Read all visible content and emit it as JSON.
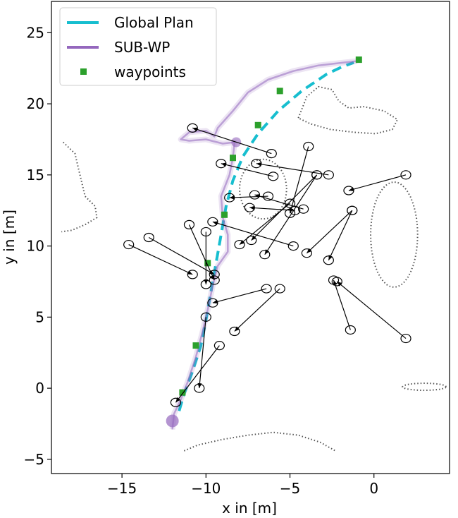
{
  "chart_data": {
    "type": "line",
    "xlabel": "x in [m]",
    "ylabel": "y in [m]",
    "xlim": [
      -19.2,
      4.5
    ],
    "ylim": [
      -6.0,
      27.2
    ],
    "xticks": [
      -15,
      -10,
      -5,
      0
    ],
    "yticks": [
      -5,
      0,
      5,
      10,
      15,
      20,
      25
    ],
    "xtick_labels": [
      "−15",
      "−10",
      "−5",
      "0"
    ],
    "ytick_labels": [
      "−5",
      "0",
      "5",
      "10",
      "15",
      "20",
      "25"
    ],
    "grid": false,
    "legend_position": "top-left",
    "legend": [
      {
        "label": "Global Plan",
        "kind": "dashed-line",
        "color": "#17becf"
      },
      {
        "label": "SUB-WP",
        "kind": "line",
        "color": "#9467bd"
      },
      {
        "label": "waypoints",
        "kind": "square",
        "color": "#2ca02c"
      }
    ],
    "series": [
      {
        "name": "Global Plan",
        "style": "dashed",
        "color": "#17becf",
        "points": [
          [
            -11.6,
            -1.6
          ],
          [
            -11.3,
            -0.4
          ],
          [
            -10.8,
            1.2
          ],
          [
            -10.3,
            3.0
          ],
          [
            -10.0,
            4.8
          ],
          [
            -9.7,
            6.8
          ],
          [
            -9.4,
            8.8
          ],
          [
            -9.1,
            10.8
          ],
          [
            -8.8,
            12.8
          ],
          [
            -8.4,
            14.6
          ],
          [
            -7.8,
            16.3
          ],
          [
            -6.9,
            17.9
          ],
          [
            -5.7,
            19.5
          ],
          [
            -4.3,
            20.9
          ],
          [
            -2.8,
            22.1
          ],
          [
            -1.9,
            22.6
          ],
          [
            -1.2,
            22.9
          ]
        ]
      },
      {
        "name": "SUB-WP",
        "style": "solid",
        "color": "#9467bd",
        "points": [
          [
            -12.0,
            -2.9
          ],
          [
            -11.9,
            -1.8
          ],
          [
            -11.5,
            -0.8
          ],
          [
            -11.1,
            0.4
          ],
          [
            -10.6,
            2.2
          ],
          [
            -10.2,
            4.0
          ],
          [
            -9.9,
            5.5
          ],
          [
            -9.6,
            7.2
          ],
          [
            -9.3,
            8.6
          ],
          [
            -8.7,
            9.6
          ],
          [
            -8.7,
            10.8
          ],
          [
            -9.0,
            12.0
          ],
          [
            -9.1,
            13.5
          ],
          [
            -8.6,
            15.0
          ],
          [
            -8.4,
            16.2
          ],
          [
            -8.3,
            17.3
          ],
          [
            -9.0,
            17.2
          ],
          [
            -10.0,
            17.5
          ],
          [
            -11.0,
            17.4
          ],
          [
            -11.5,
            17.5
          ],
          [
            -11.0,
            18.0
          ],
          [
            -10.0,
            18.1
          ],
          [
            -9.5,
            17.7
          ],
          [
            -9.3,
            18.3
          ],
          [
            -8.4,
            19.5
          ],
          [
            -7.5,
            20.8
          ],
          [
            -6.3,
            21.7
          ],
          [
            -4.8,
            22.3
          ],
          [
            -3.3,
            22.7
          ],
          [
            -1.8,
            22.9
          ],
          [
            -1.0,
            23.0
          ]
        ]
      },
      {
        "name": "waypoints",
        "style": "markers",
        "color": "#2ca02c",
        "points": [
          [
            -11.4,
            -0.3
          ],
          [
            -10.6,
            3.0
          ],
          [
            -9.9,
            8.8
          ],
          [
            -8.9,
            12.2
          ],
          [
            -8.4,
            16.2
          ],
          [
            -6.9,
            18.5
          ],
          [
            -5.6,
            20.9
          ],
          [
            -0.9,
            23.1
          ]
        ]
      }
    ],
    "obstacle_arrows": [
      [
        [
          -6.1,
          16.5
        ],
        [
          -10.8,
          18.3
        ]
      ],
      [
        [
          -4.8,
          10.0
        ],
        [
          -9.6,
          11.7
        ]
      ],
      [
        [
          -3.9,
          17.0
        ],
        [
          -5.0,
          12.3
        ]
      ],
      [
        [
          -3.4,
          15.0
        ],
        [
          -7.3,
          10.4
        ]
      ],
      [
        [
          -3.4,
          15.0
        ],
        [
          -6.5,
          9.4
        ]
      ],
      [
        [
          -4.2,
          12.6
        ],
        [
          -7.1,
          13.6
        ]
      ],
      [
        [
          -5.0,
          13.0
        ],
        [
          -8.0,
          10.1
        ]
      ],
      [
        [
          -4.7,
          12.5
        ],
        [
          -7.4,
          12.7
        ]
      ],
      [
        [
          -2.7,
          15.0
        ],
        [
          -7.0,
          15.8
        ]
      ],
      [
        [
          -6.0,
          14.9
        ],
        [
          -9.1,
          15.8
        ]
      ],
      [
        [
          -6.3,
          13.5
        ],
        [
          -8.6,
          13.4
        ]
      ],
      [
        [
          -1.3,
          12.5
        ],
        [
          -4.0,
          9.5
        ]
      ],
      [
        [
          -1.3,
          12.5
        ],
        [
          -2.7,
          9.0
        ]
      ],
      [
        [
          1.9,
          15.0
        ],
        [
          -1.5,
          13.9
        ]
      ],
      [
        [
          -1.4,
          4.1
        ],
        [
          -2.4,
          7.6
        ]
      ],
      [
        [
          1.9,
          3.5
        ],
        [
          -2.2,
          7.5
        ]
      ],
      [
        [
          -6.4,
          7.0
        ],
        [
          -9.6,
          6.0
        ]
      ],
      [
        [
          -5.6,
          7.0
        ],
        [
          -8.3,
          4.0
        ]
      ],
      [
        [
          -14.6,
          10.1
        ],
        [
          -10.8,
          8.0
        ]
      ],
      [
        [
          -13.4,
          10.6
        ],
        [
          -9.5,
          8.0
        ]
      ],
      [
        [
          -10.0,
          11.0
        ],
        [
          -10.0,
          7.3
        ]
      ],
      [
        [
          -11.0,
          11.5
        ],
        [
          -9.5,
          7.6
        ]
      ],
      [
        [
          -9.2,
          3.0
        ],
        [
          -11.8,
          -1.0
        ]
      ],
      [
        [
          -10.0,
          5.0
        ],
        [
          -10.4,
          0.0
        ]
      ]
    ]
  }
}
